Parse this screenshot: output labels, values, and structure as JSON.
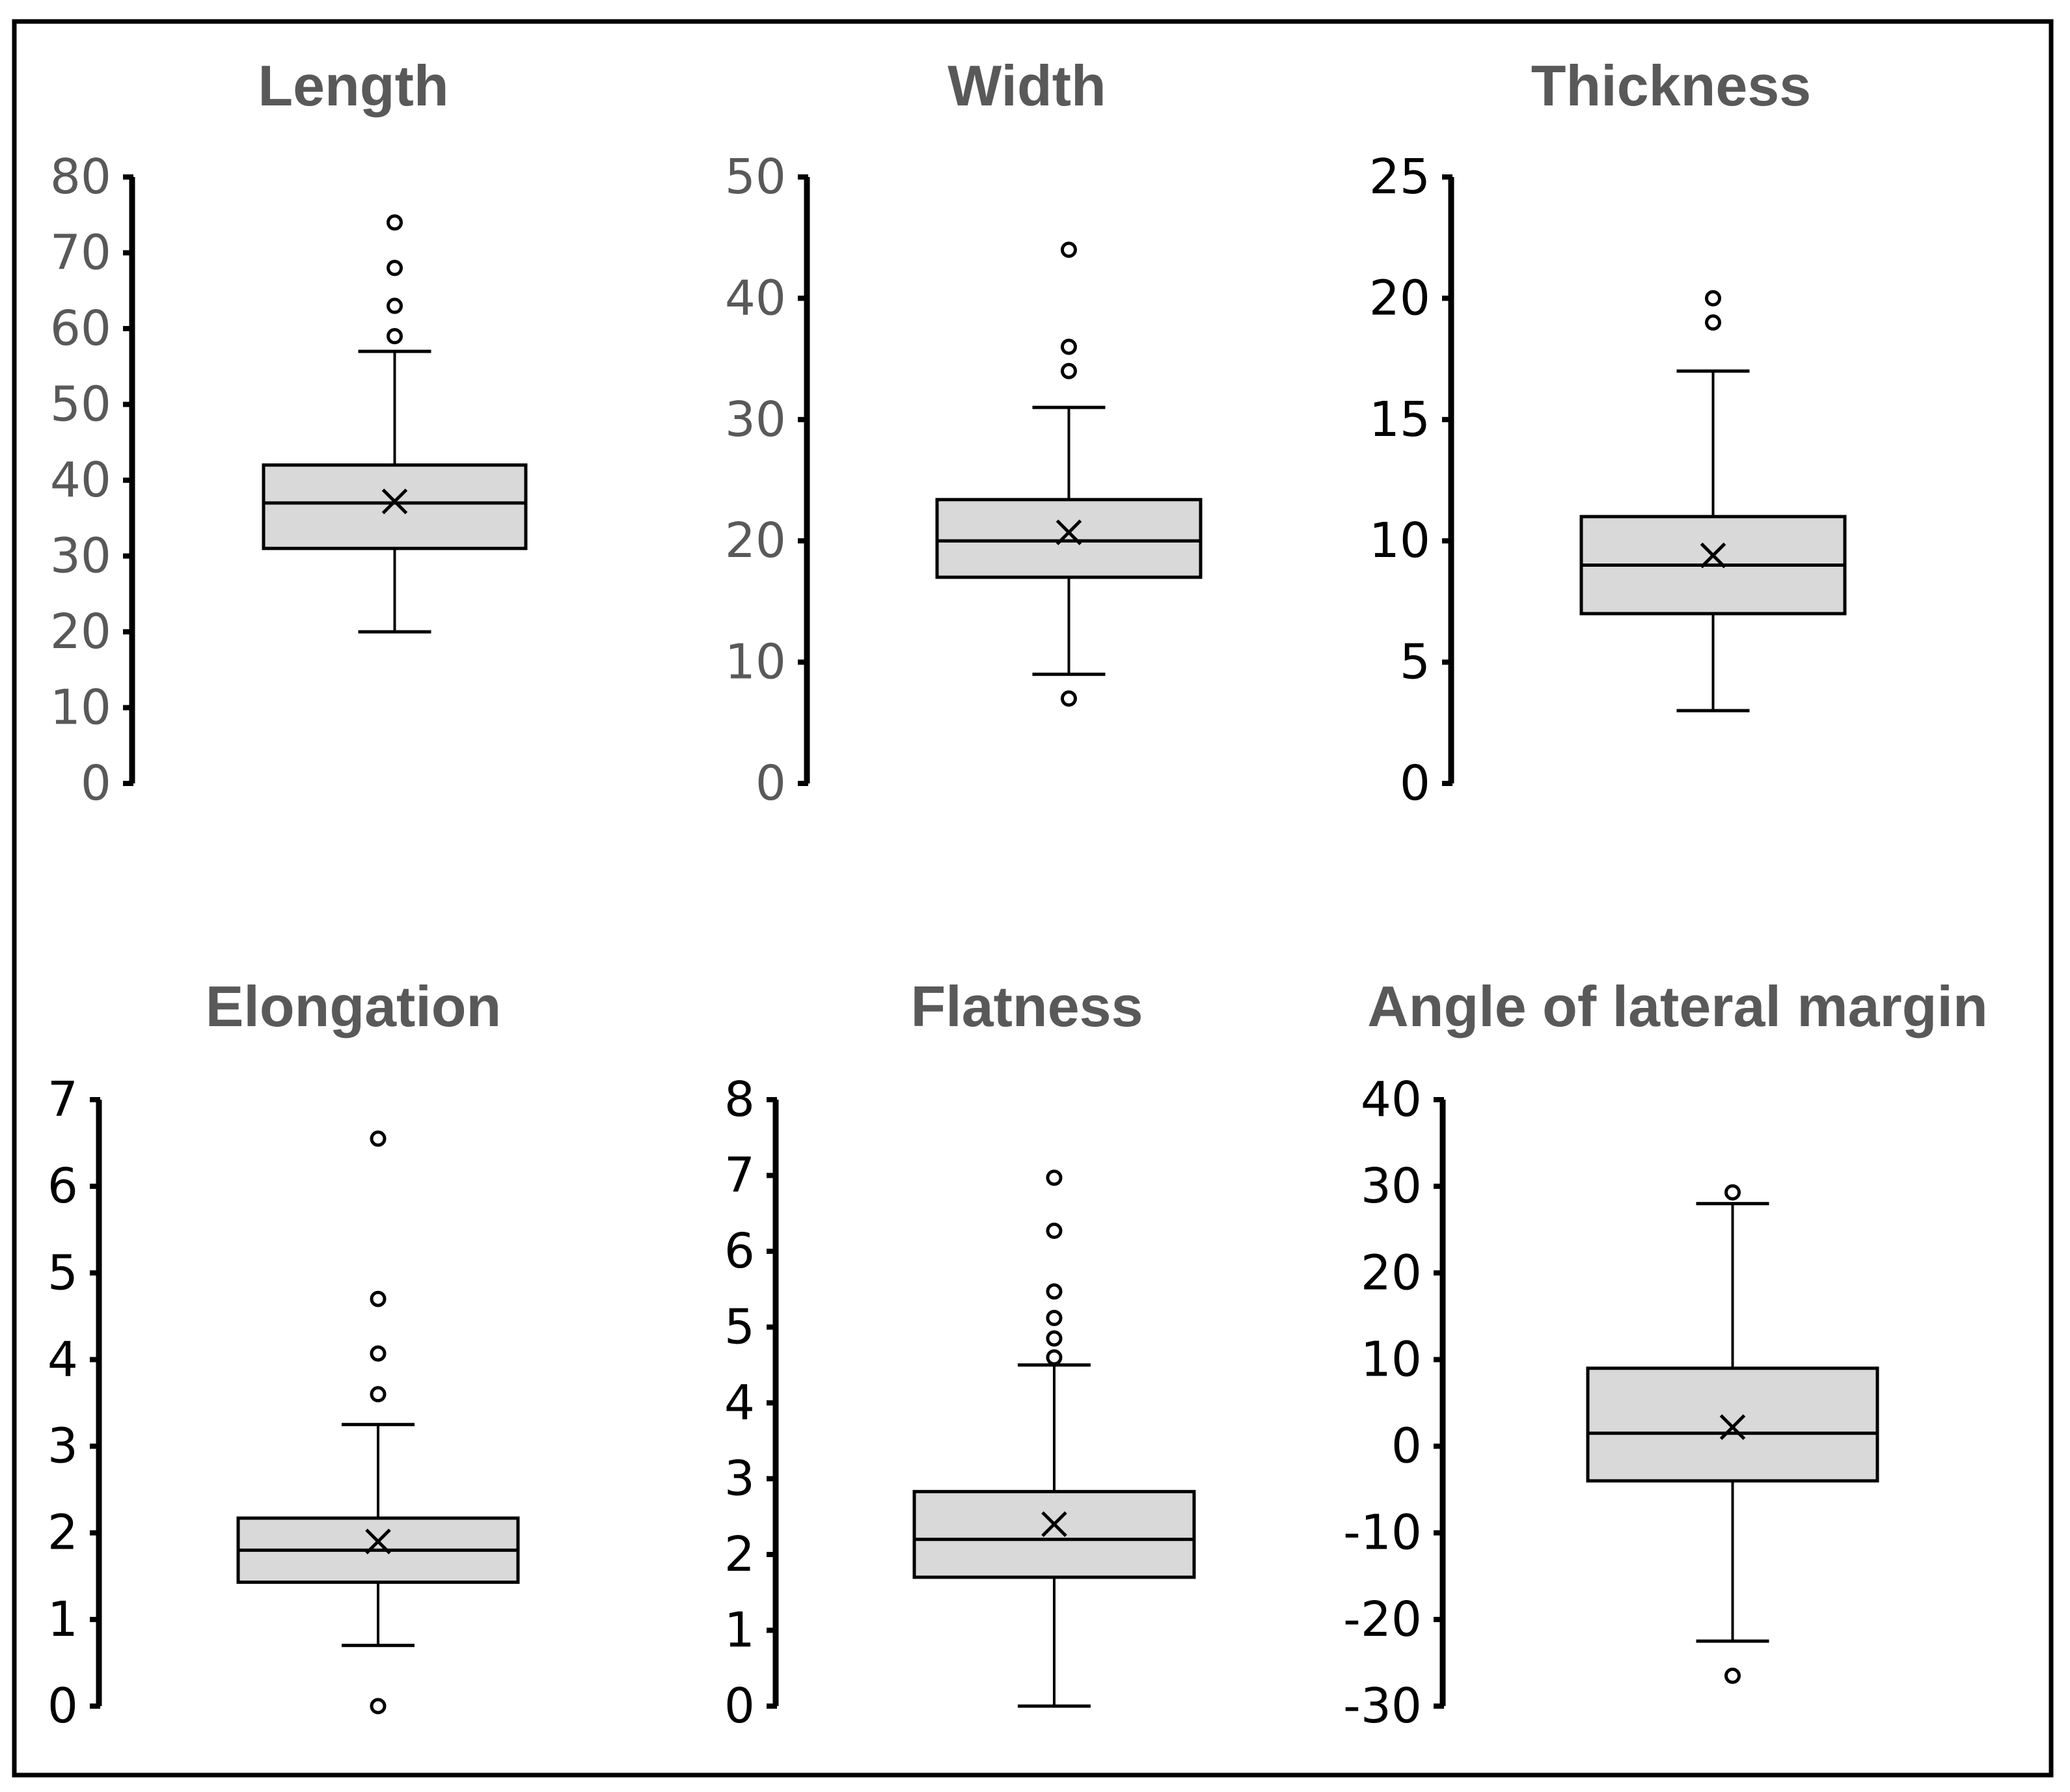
{
  "chart_data": [
    {
      "type": "box",
      "title": "Length",
      "ylim": [
        0,
        80
      ],
      "ticks": [
        0,
        10,
        20,
        30,
        40,
        50,
        60,
        70,
        80
      ],
      "tick_color": "#595959",
      "whisker_low": 20,
      "q1": 31,
      "median": 37,
      "q3": 42,
      "whisker_high": 57,
      "mean": 37.2,
      "outliers": [
        59,
        63,
        68,
        74
      ]
    },
    {
      "type": "box",
      "title": "Width",
      "ylim": [
        0,
        50
      ],
      "ticks": [
        0,
        10,
        20,
        30,
        40,
        50
      ],
      "tick_color": "#595959",
      "whisker_low": 9,
      "q1": 17,
      "median": 20,
      "q3": 23.4,
      "whisker_high": 31,
      "mean": 20.7,
      "outliers": [
        7,
        34,
        36,
        44
      ]
    },
    {
      "type": "box",
      "title": "Thickness",
      "ylim": [
        0,
        25
      ],
      "ticks": [
        0,
        5,
        10,
        15,
        20,
        25
      ],
      "tick_color": "#000000",
      "whisker_low": 3,
      "q1": 7,
      "median": 9,
      "q3": 11,
      "whisker_high": 17,
      "mean": 9.4,
      "outliers": [
        19,
        20
      ]
    },
    {
      "type": "box",
      "title": "Elongation",
      "ylim": [
        0,
        7
      ],
      "ticks": [
        0,
        1,
        2,
        3,
        4,
        5,
        6,
        7
      ],
      "tick_color": "#000000",
      "whisker_low": 0.7,
      "q1": 1.43,
      "median": 1.8,
      "q3": 2.17,
      "whisker_high": 3.25,
      "mean": 1.9,
      "outliers": [
        0,
        3.6,
        4.07,
        4.7,
        6.55
      ]
    },
    {
      "type": "box",
      "title": "Flatness",
      "ylim": [
        0,
        8
      ],
      "ticks": [
        0,
        1,
        2,
        3,
        4,
        5,
        6,
        7,
        8
      ],
      "tick_color": "#000000",
      "whisker_low": 0,
      "q1": 1.7,
      "median": 2.2,
      "q3": 2.83,
      "whisker_high": 4.5,
      "mean": 2.4,
      "outliers": [
        4.6,
        4.85,
        5.12,
        5.47,
        6.27,
        6.97
      ]
    },
    {
      "type": "box",
      "title": "Angle of lateral margin",
      "ylim": [
        -30,
        40
      ],
      "ticks": [
        -30,
        -20,
        -10,
        0,
        10,
        20,
        30,
        40
      ],
      "tick_color": "#000000",
      "whisker_low": -22.5,
      "q1": -4,
      "median": 1.5,
      "q3": 9,
      "whisker_high": 28,
      "mean": 2.2,
      "outliers": [
        -26.5,
        29.3
      ]
    }
  ]
}
